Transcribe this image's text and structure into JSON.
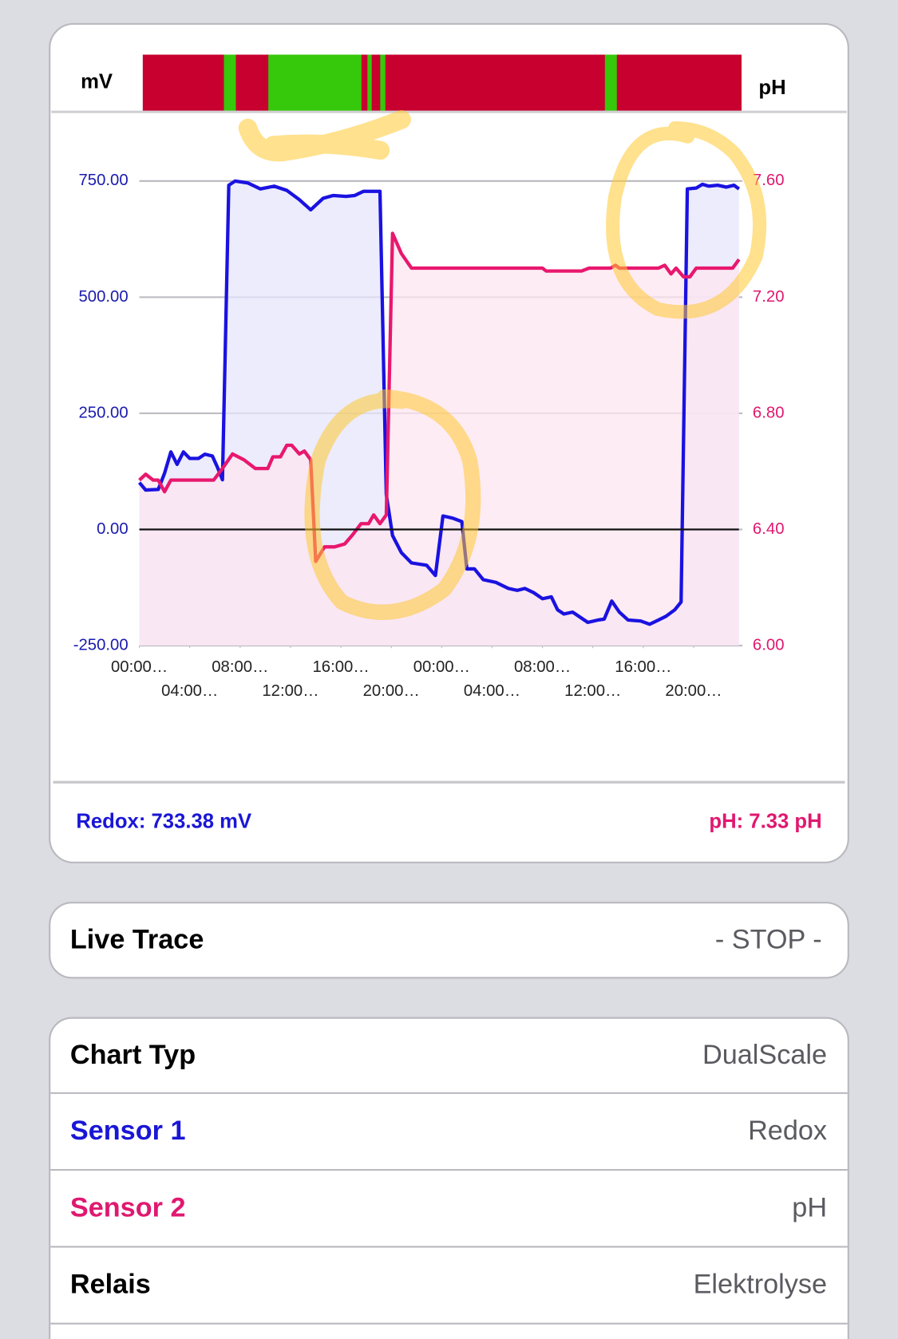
{
  "chart_data": {
    "type": "line",
    "y_label": "mV",
    "y2_label": "pH",
    "xlim": [
      0,
      47.6
    ],
    "xticks": [
      {
        "value": 0,
        "label": "00:00…"
      },
      {
        "value": 4,
        "label": "04:00…"
      },
      {
        "value": 8,
        "label": "08:00…"
      },
      {
        "value": 12,
        "label": "12:00…"
      },
      {
        "value": 16,
        "label": "16:00…"
      },
      {
        "value": 20,
        "label": "20:00…"
      },
      {
        "value": 24,
        "label": "00:00…"
      },
      {
        "value": 28,
        "label": "04:00…"
      },
      {
        "value": 32,
        "label": "08:00…"
      },
      {
        "value": 36,
        "label": "12:00…"
      },
      {
        "value": 40,
        "label": "16:00…"
      },
      {
        "value": 44,
        "label": "20:00…"
      }
    ],
    "ylim": [
      -250,
      750
    ],
    "yticks": [
      {
        "value": -250,
        "label": "-250.00"
      },
      {
        "value": 0,
        "label": "0.00"
      },
      {
        "value": 250,
        "label": "250.00"
      },
      {
        "value": 500,
        "label": "500.00"
      },
      {
        "value": 750,
        "label": "750.00"
      }
    ],
    "y2lim": [
      6,
      7.6
    ],
    "y2ticks": [
      {
        "value": 6,
        "label": "6.00"
      },
      {
        "value": 6.4,
        "label": "6.40"
      },
      {
        "value": 6.8,
        "label": "6.80"
      },
      {
        "value": 7.2,
        "label": "7.20"
      },
      {
        "value": 7.6,
        "label": "7.60"
      }
    ],
    "grid": true,
    "series": [
      {
        "color": "#1a12e0",
        "fill": "#e6e6fc",
        "x": [
          0,
          0.5,
          1.5,
          2,
          2.5,
          3,
          3.5,
          4,
          4.7,
          5.2,
          5.8,
          6.2,
          6.6,
          7.1,
          7.6,
          8.6,
          9.6,
          10.7,
          11.7,
          12.7,
          13.6,
          14.6,
          15.4,
          16.4,
          17.1,
          17.8,
          18.8,
          19.1,
          19.6,
          20.1,
          20.8,
          21.6,
          22.8,
          23.5,
          24.1,
          24.9,
          25.6,
          26,
          26.6,
          27.3,
          28.3,
          29.3,
          30,
          30.6,
          31.3,
          32,
          32.7,
          33.2,
          33.7,
          34.4,
          35.1,
          35.6,
          36.4,
          36.9,
          37.5,
          38.1,
          38.8,
          39.8,
          40.5,
          41.2,
          41.8,
          42.5,
          43,
          43.5,
          44.2,
          44.7,
          45.2,
          45.9,
          46.6,
          47.2,
          47.6
        ],
        "values": [
          101,
          85,
          86,
          121,
          167,
          140,
          167,
          153,
          153,
          162,
          158,
          134,
          107,
          741,
          750,
          746,
          733,
          739,
          730,
          710,
          688,
          713,
          719,
          717,
          719,
          728,
          728,
          728,
          75,
          -13,
          -50,
          -72,
          -77,
          -99,
          29,
          24,
          17,
          -85,
          -85,
          -108,
          -114,
          -127,
          -131,
          -127,
          -136,
          -149,
          -145,
          -173,
          -182,
          -178,
          -191,
          -200,
          -195,
          -193,
          -154,
          -178,
          -195,
          -197,
          -204,
          -195,
          -187,
          -173,
          -156,
          733,
          735,
          743,
          739,
          741,
          737,
          741,
          733
        ]
      },
      {
        "color": "#e8186e",
        "fill": "#fde6f0",
        "axis": "y2",
        "x": [
          0,
          0.5,
          1.1,
          1.5,
          2,
          2.5,
          3.5,
          4.9,
          5.9,
          6.6,
          7.4,
          8.3,
          9.2,
          10.2,
          10.6,
          11.2,
          11.7,
          12.1,
          12.7,
          13.1,
          13.6,
          14,
          14.7,
          15.5,
          16.3,
          16.9,
          17.6,
          18.2,
          18.6,
          19.1,
          19.6,
          20.1,
          20.8,
          21.6,
          24.2,
          26.9,
          29.6,
          32,
          32.3,
          35.1,
          35.7,
          37.4,
          37.8,
          38.1,
          41.2,
          41.7,
          42.2,
          42.6,
          43.2,
          43.7,
          44.2,
          47.1,
          47.6
        ],
        "values": [
          6.57,
          6.59,
          6.57,
          6.57,
          6.53,
          6.57,
          6.57,
          6.57,
          6.57,
          6.61,
          6.66,
          6.64,
          6.61,
          6.61,
          6.65,
          6.65,
          6.69,
          6.69,
          6.66,
          6.67,
          6.64,
          6.29,
          6.34,
          6.34,
          6.35,
          6.38,
          6.42,
          6.42,
          6.45,
          6.42,
          6.45,
          7.42,
          7.35,
          7.3,
          7.3,
          7.3,
          7.3,
          7.3,
          7.29,
          7.29,
          7.3,
          7.3,
          7.31,
          7.3,
          7.3,
          7.31,
          7.28,
          7.3,
          7.27,
          7.27,
          7.3,
          7.3,
          7.33
        ]
      }
    ]
  },
  "readouts": {
    "redox": "Redox: 733.38 mV",
    "ph": "pH: 7.33 pH"
  },
  "live_trace": {
    "label": "Live Trace",
    "value": "- STOP -"
  },
  "settings": [
    {
      "label": "Chart Typ",
      "value": "DualScale"
    },
    {
      "label": "Sensor 1",
      "value": "Redox"
    },
    {
      "label": "Sensor 2",
      "value": "pH"
    },
    {
      "label": "Relais",
      "value": "Elektrolyse"
    }
  ]
}
